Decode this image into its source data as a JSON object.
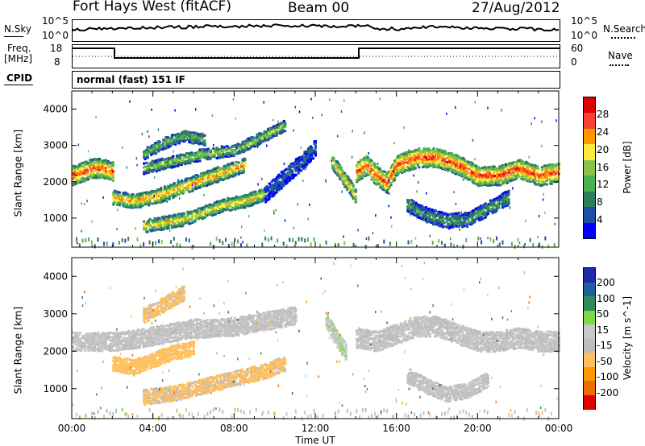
{
  "header": {
    "station": "Fort Hays West (fitACF)",
    "beam": "Beam 00",
    "date": "27/Aug/2012"
  },
  "top_panel": {
    "left_label": "N.Sky",
    "left_ticks": [
      "10^5",
      "10^0"
    ],
    "right_label": "N.Search",
    "right_ticks": [
      "10^5",
      "10^0"
    ]
  },
  "freq_panel": {
    "left_label_1": "Freq.",
    "left_label_2": "[MHz]",
    "left_ticks": [
      "18",
      "8"
    ],
    "right_label": "Nave",
    "right_ticks": [
      "60",
      "0"
    ]
  },
  "cpid": {
    "label": "CPID",
    "mode": "normal (fast) 151 IF"
  },
  "colors": {
    "power": [
      "#0000ff",
      "#1f4fa8",
      "#2e7d5b",
      "#4caf50",
      "#8bc34a",
      "#ffeb3b",
      "#ff9800",
      "#f44336",
      "#e00000"
    ],
    "velocity": [
      "#e00000",
      "#f26b00",
      "#ff9900",
      "#ffc060",
      "#bdbdbd",
      "#c8c8c8",
      "#7fd84a",
      "#2e8b57",
      "#1f5fa0",
      "#1e2aa8"
    ]
  },
  "chart_data": [
    {
      "type": "heatmap",
      "title": "",
      "xlabel": "Time UT",
      "ylabel": "Slant Range [km]",
      "x_ticks": [
        "00:00",
        "04:00",
        "08:00",
        "12:00",
        "16:00",
        "20:00",
        "00:00"
      ],
      "xlim": [
        0,
        24
      ],
      "y_ticks": [
        "1000",
        "2000",
        "3000",
        "4000"
      ],
      "ylim": [
        200,
        4500
      ],
      "colorbar": {
        "label": "Power [dB]",
        "ticks": [
          "4",
          "8",
          "12",
          "16",
          "20",
          "24",
          "28"
        ],
        "range": [
          0,
          30
        ]
      },
      "bands": [
        {
          "t": [
            0.0,
            0.5,
            1.0,
            1.5,
            2.0
          ],
          "range": [
            2200,
            2300,
            2400,
            2400,
            2300
          ],
          "width": 250,
          "peak": 24
        },
        {
          "t": [
            2.0,
            3.0,
            4.0,
            5.5,
            7.0,
            8.5
          ],
          "range": [
            1600,
            1500,
            1600,
            1900,
            2200,
            2500
          ],
          "width": 180,
          "peak": 20
        },
        {
          "t": [
            3.5,
            5.0,
            6.5,
            8.0,
            9.5,
            10.5
          ],
          "range": [
            2400,
            2600,
            2800,
            2900,
            3300,
            3600
          ],
          "width": 140,
          "peak": 14
        },
        {
          "t": [
            3.5,
            4.5,
            5.5,
            6.5
          ],
          "range": [
            2800,
            3100,
            3300,
            3200
          ],
          "width": 150,
          "peak": 12
        },
        {
          "t": [
            3.5,
            4.5,
            5.5,
            6.5,
            7.5,
            8.5,
            9.5
          ],
          "range": [
            800,
            900,
            1000,
            1200,
            1400,
            1500,
            1700
          ],
          "width": 160,
          "peak": 18
        },
        {
          "t": [
            12.8,
            13.3,
            13.8,
            14.0
          ],
          "range": [
            2600,
            2200,
            1800,
            1600
          ],
          "width": 200,
          "peak": 18
        },
        {
          "t": [
            14.0,
            14.5,
            15.0,
            15.5,
            16.0,
            17.0,
            18.0,
            19.0,
            20.0,
            21.0,
            22.0,
            23.0,
            24.0
          ],
          "range": [
            2300,
            2500,
            2200,
            2000,
            2500,
            2700,
            2700,
            2500,
            2200,
            2200,
            2400,
            2200,
            2300
          ],
          "width": 260,
          "peak": 24
        },
        {
          "t": [
            16.5,
            17.5,
            18.5,
            19.5,
            20.5,
            21.5
          ],
          "range": [
            1400,
            1100,
            950,
            1000,
            1300,
            1600
          ],
          "width": 180,
          "peak": 10
        },
        {
          "t": [
            9.5,
            10.5,
            11.5,
            12.0
          ],
          "range": [
            1700,
            2200,
            2700,
            3000
          ],
          "width": 220,
          "peak": 6
        }
      ]
    },
    {
      "type": "heatmap",
      "title": "",
      "xlabel": "Time UT",
      "ylabel": "Slant Range [km]",
      "x_ticks": [
        "00:00",
        "04:00",
        "08:00",
        "12:00",
        "16:00",
        "20:00",
        "00:00"
      ],
      "xlim": [
        0,
        24
      ],
      "y_ticks": [
        "1000",
        "2000",
        "3000",
        "4000"
      ],
      "ylim": [
        200,
        4500
      ],
      "colorbar": {
        "label": "Velocity [m s^-1]",
        "ticks": [
          "-200",
          "-100",
          "-50",
          "-15",
          "15",
          "50",
          "100",
          "200"
        ],
        "range": [
          -250,
          250
        ]
      },
      "bands": [
        {
          "t": [
            0.0,
            1.0,
            2.0,
            3.0,
            4.0,
            5.0,
            6.0,
            7.0,
            8.0,
            9.0,
            10.0,
            11.0
          ],
          "range": [
            2300,
            2300,
            2300,
            2350,
            2450,
            2550,
            2650,
            2650,
            2700,
            2800,
            2900,
            3000
          ],
          "width": 240,
          "vel": 0
        },
        {
          "t": [
            3.5,
            4.5,
            5.5
          ],
          "range": [
            3000,
            3300,
            3600
          ],
          "width": 200,
          "vel": -60
        },
        {
          "t": [
            2.0,
            3.0,
            4.0,
            5.0,
            6.0
          ],
          "range": [
            1700,
            1600,
            1800,
            2000,
            2100
          ],
          "width": 180,
          "vel": -70
        },
        {
          "t": [
            3.5,
            5.0,
            6.5,
            8.0,
            9.5,
            10.5
          ],
          "range": [
            800,
            900,
            1100,
            1300,
            1500,
            1700
          ],
          "width": 180,
          "vel": -60
        },
        {
          "t": [
            12.5,
            13.0,
            13.5
          ],
          "range": [
            2900,
            2400,
            2000
          ],
          "width": 220,
          "vel": 40
        },
        {
          "t": [
            14.0,
            15.0,
            16.0,
            17.0,
            18.0,
            19.0,
            20.0,
            21.0,
            22.0,
            23.0,
            24.0
          ],
          "range": [
            2400,
            2300,
            2500,
            2700,
            2700,
            2500,
            2300,
            2300,
            2400,
            2300,
            2300
          ],
          "width": 260,
          "vel": 0
        },
        {
          "t": [
            16.5,
            17.5,
            18.5,
            19.5,
            20.5
          ],
          "range": [
            1400,
            1100,
            900,
            1000,
            1300
          ],
          "width": 200,
          "vel": 0
        }
      ]
    }
  ]
}
